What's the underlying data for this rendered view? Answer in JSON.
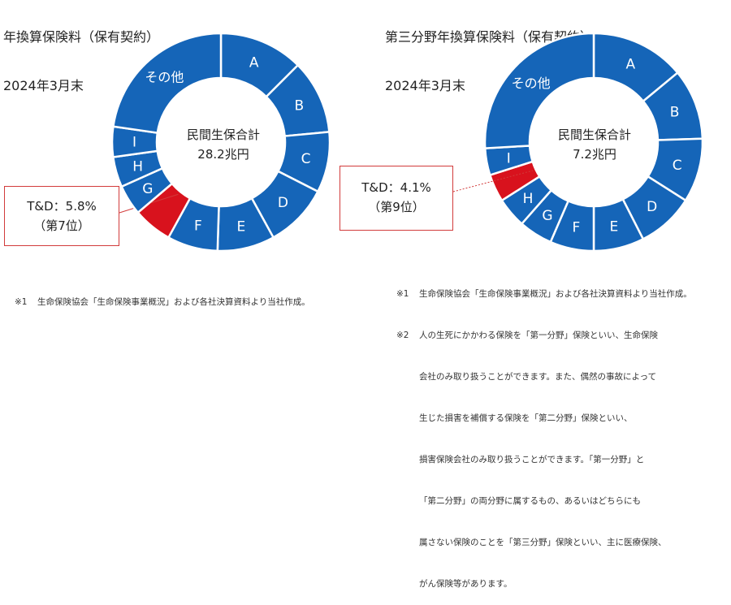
{
  "left": {
    "title_line1": "年換算保険料（保有契約）",
    "title_line2": "2024年3月末",
    "center_line1": "民間生保合計",
    "center_line2": "28.2兆円",
    "callout_line1": "T&D：5.8%",
    "callout_line2": "（第7位）",
    "note_mark": "※1",
    "note_text": "生命保険協会「生命保険事業概況」および各社決算資料より当社作成。"
  },
  "right": {
    "title_line1": "第三分野年換算保険料（保有契約）",
    "title_line2": "2024年3月末",
    "center_line1": "民間生保合計",
    "center_line2": "7.2兆円",
    "callout_line1": "T&D：4.1%",
    "callout_line2": "（第9位）",
    "notes": [
      {
        "mark": "※1",
        "text": "生命保険協会「生命保険事業概況」および各社決算資料より当社作成。"
      },
      {
        "mark": "※2",
        "text": "人の生死にかかわる保険を「第一分野」保険といい、生命保険"
      },
      {
        "mark": "",
        "text": "会社のみ取り扱うことができます。また、偶然の事故によって"
      },
      {
        "mark": "",
        "text": "生じた損害を補償する保険を「第二分野」保険といい、"
      },
      {
        "mark": "",
        "text": "損害保険会社のみ取り扱うことができます。「第一分野」と"
      },
      {
        "mark": "",
        "text": "「第二分野」の両分野に属するもの、あるいはどちらにも"
      },
      {
        "mark": "",
        "text": "属さない保険のことを「第三分野」保険といい、主に医療保険、"
      },
      {
        "mark": "",
        "text": "がん保険等があります。"
      }
    ]
  },
  "colors": {
    "segment": "#1565b8",
    "highlight": "#d8121d",
    "callout_border": "#d23b3b",
    "label": "#ffffff"
  },
  "chart_data": [
    {
      "type": "pie",
      "title": "年換算保険料（保有契約）",
      "subtitle": "2024年3月末",
      "center_label": "民間生保合計 28.2兆円",
      "slices": [
        {
          "label": "A",
          "value": 12.5,
          "highlight": false
        },
        {
          "label": "B",
          "value": 11.0,
          "highlight": false
        },
        {
          "label": "C",
          "value": 9.0,
          "highlight": false
        },
        {
          "label": "D",
          "value": 9.5,
          "highlight": false
        },
        {
          "label": "E",
          "value": 8.5,
          "highlight": false
        },
        {
          "label": "F",
          "value": 7.5,
          "highlight": false
        },
        {
          "label": "T&D",
          "value": 5.8,
          "highlight": true
        },
        {
          "label": "G",
          "value": 4.5,
          "highlight": false
        },
        {
          "label": "H",
          "value": 4.5,
          "highlight": false
        },
        {
          "label": "I",
          "value": 4.5,
          "highlight": false
        },
        {
          "label": "その他",
          "value": 22.7,
          "highlight": false
        }
      ]
    },
    {
      "type": "pie",
      "title": "第三分野年換算保険料（保有契約）",
      "subtitle": "2024年3月末",
      "center_label": "民間生保合計 7.2兆円",
      "slices": [
        {
          "label": "A",
          "value": 14.0,
          "highlight": false
        },
        {
          "label": "B",
          "value": 10.5,
          "highlight": false
        },
        {
          "label": "C",
          "value": 9.5,
          "highlight": false
        },
        {
          "label": "D",
          "value": 8.5,
          "highlight": false
        },
        {
          "label": "E",
          "value": 7.5,
          "highlight": false
        },
        {
          "label": "F",
          "value": 6.5,
          "highlight": false
        },
        {
          "label": "G",
          "value": 5.0,
          "highlight": false
        },
        {
          "label": "H",
          "value": 4.5,
          "highlight": false
        },
        {
          "label": "T&D",
          "value": 4.1,
          "highlight": true
        },
        {
          "label": "I",
          "value": 4.0,
          "highlight": false
        },
        {
          "label": "その他",
          "value": 25.9,
          "highlight": false
        }
      ]
    }
  ]
}
